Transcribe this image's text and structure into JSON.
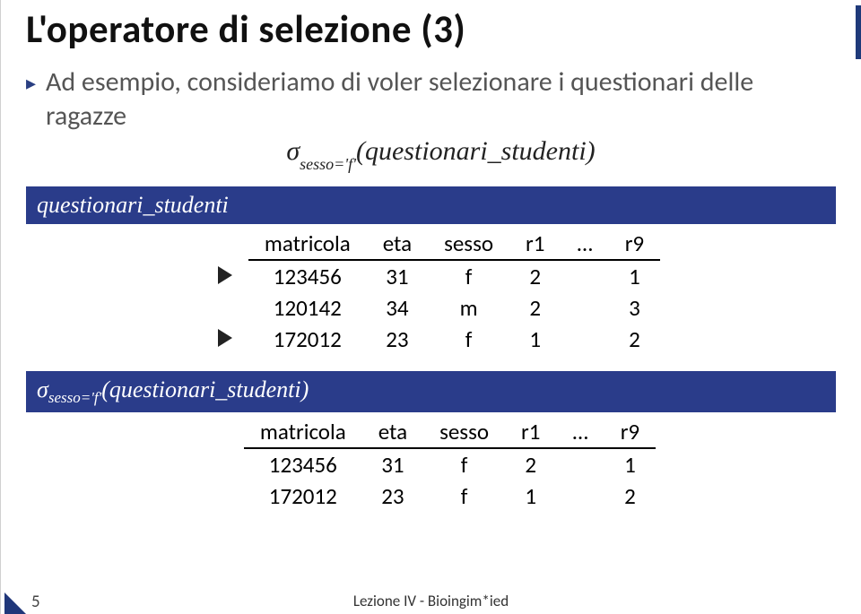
{
  "title": "L'operatore di selezione (3)",
  "body_text": "Ad esempio, consideriamo di voler selezionare i questionari delle ragazze",
  "formula_html": "&#963;<sub>sesso='f'</sub>(questionari_studenti)",
  "tables": [
    {
      "header_html": "questionari<span class=\"underscore\">_</span>studenti",
      "columns": [
        "matricola",
        "eta",
        "sesso",
        "r1",
        "…",
        "r9"
      ],
      "rows": [
        {
          "marker": true,
          "cells": [
            "123456",
            "31",
            "f",
            "2",
            "",
            "1"
          ]
        },
        {
          "marker": false,
          "cells": [
            "120142",
            "34",
            "m",
            "2",
            "",
            "3"
          ]
        },
        {
          "marker": true,
          "cells": [
            "172012",
            "23",
            "f",
            "1",
            "",
            "2"
          ]
        }
      ]
    },
    {
      "header_html": "&#963;<sub>sesso='f'</sub>(questionari<span class=\"underscore\">_</span>studenti)",
      "columns": [
        "matricola",
        "eta",
        "sesso",
        "r1",
        "…",
        "r9"
      ],
      "rows": [
        {
          "marker": false,
          "cells": [
            "123456",
            "31",
            "f",
            "2",
            "",
            "1"
          ]
        },
        {
          "marker": false,
          "cells": [
            "172012",
            "23",
            "f",
            "1",
            "",
            "2"
          ]
        }
      ]
    }
  ],
  "footer": "Lezione IV - Bioingim*ied",
  "page_num": "5",
  "colors": {
    "header_bar_bg": "#2a3c8a",
    "bullet_color": "#2a3f82",
    "body_text_color": "#555"
  }
}
